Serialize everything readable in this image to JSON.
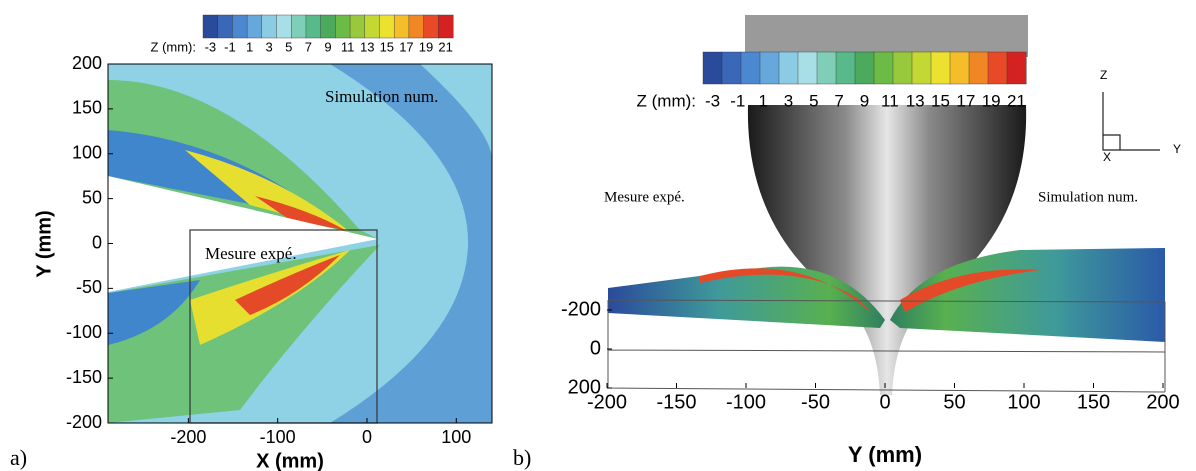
{
  "chart_data": [
    {
      "type": "contour",
      "panel_label": "a)",
      "x_label": "X (mm)",
      "y_label": "Y (mm)",
      "xlim": [
        -290,
        140
      ],
      "xticks": [
        -200,
        -100,
        0,
        100
      ],
      "ylim": [
        -200,
        200
      ],
      "yticks": [
        -200,
        -150,
        -100,
        -50,
        0,
        50,
        100,
        150,
        200
      ],
      "colorbar": {
        "label": "Z (mm):",
        "ticks": [
          -3,
          -1,
          1,
          3,
          5,
          7,
          9,
          11,
          13,
          15,
          17,
          19,
          21
        ],
        "colors": [
          "#2a4a9c",
          "#3a68b8",
          "#4c88cf",
          "#67a8dc",
          "#8ccbe4",
          "#a8dfe6",
          "#7fcfb8",
          "#58b98a",
          "#4caa5c",
          "#6cbb46",
          "#98c93c",
          "#c4d834",
          "#ebe12e",
          "#f6bd2a",
          "#f08624",
          "#e84a28",
          "#d42222"
        ]
      },
      "annotations": [
        "Simulation num.",
        "Mesure expé."
      ]
    },
    {
      "type": "surface",
      "panel_label": "b)",
      "x_label": "Y (mm)",
      "xlim": [
        -200,
        200
      ],
      "xticks": [
        -200,
        -150,
        -100,
        -50,
        0,
        50,
        100,
        150,
        200
      ],
      "ylim": [
        200,
        -200
      ],
      "yticks": [
        -200,
        0,
        200
      ],
      "colorbar": {
        "label": "Z (mm):",
        "ticks": [
          -3,
          -1,
          1,
          3,
          5,
          7,
          9,
          11,
          13,
          15,
          17,
          19,
          21
        ],
        "colors": [
          "#2a4a9c",
          "#3a68b8",
          "#4c88cf",
          "#67a8dc",
          "#8ccbe4",
          "#a8dfe6",
          "#7fcfb8",
          "#58b98a",
          "#4caa5c",
          "#6cbb46",
          "#98c93c",
          "#c4d834",
          "#ebe12e",
          "#f6bd2a",
          "#f08624",
          "#e84a28",
          "#d42222"
        ]
      },
      "annotations": [
        "Mesure expé.",
        "Simulation num."
      ],
      "axis_triad": [
        "Z",
        "X",
        "Y"
      ]
    }
  ]
}
